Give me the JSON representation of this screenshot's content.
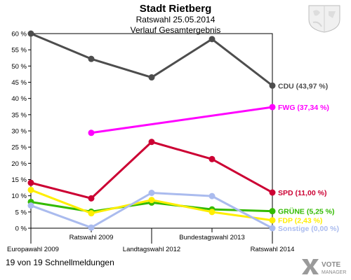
{
  "header": {
    "title": "Stadt Rietberg",
    "subtitle": "Ratswahl 25.05.2014",
    "subtitle2": "Verlauf Gesamtergebnis"
  },
  "footer": {
    "status": "19 von 19 Schnellmeldungen",
    "logo_text_1": "VOTE",
    "logo_text_2": "MANAGER"
  },
  "icons": {
    "crest": "coat-of-arms-icon",
    "logo": "vote-manager-logo-icon"
  },
  "chart_data": {
    "type": "line",
    "title": "Stadt Rietberg",
    "subtitle": "Ratswahl 25.05.2014 – Verlauf Gesamtergebnis",
    "categories": [
      "Europawahl 2009",
      "Ratswahl 2009",
      "Landtagswahl 2012",
      "Bundestagswahl 2013",
      "Ratswahl 2014"
    ],
    "ylim": [
      0,
      60
    ],
    "yticks": [
      0,
      5,
      10,
      15,
      20,
      25,
      30,
      35,
      40,
      45,
      50,
      55,
      60
    ],
    "ytick_labels": [
      "0 %",
      "5 %",
      "10 %",
      "15 %",
      "20 %",
      "25 %",
      "30 %",
      "35 %",
      "40 %",
      "45 %",
      "50 %",
      "55 %",
      "60 %"
    ],
    "grid": false,
    "series": [
      {
        "name": "CDU",
        "color": "#4d4d4d",
        "values": [
          60.0,
          52.2,
          46.5,
          58.3,
          43.97
        ],
        "end_label": "CDU (43,97 %)"
      },
      {
        "name": "FWG",
        "color": "#ff00ff",
        "values": [
          null,
          29.4,
          null,
          null,
          37.34
        ],
        "end_label": "FWG (37,34 %)"
      },
      {
        "name": "SPD",
        "color": "#cc0033",
        "values": [
          14.0,
          9.2,
          26.6,
          21.3,
          11.0
        ],
        "end_label": "SPD (11,00 %)"
      },
      {
        "name": "GRÜNE",
        "color": "#33bb00",
        "values": [
          8.1,
          5.1,
          7.9,
          5.8,
          5.25
        ],
        "end_label": "GRÜNE (5,25 %)"
      },
      {
        "name": "FDP",
        "color": "#ffee00",
        "values": [
          11.8,
          4.6,
          8.7,
          5.0,
          2.43
        ],
        "end_label": "FDP (2,43 %)"
      },
      {
        "name": "Sonstige",
        "color": "#aabbee",
        "values": [
          7.0,
          0.2,
          10.9,
          9.9,
          0.0
        ],
        "end_label": "Sonstige (0,00 %)"
      }
    ]
  }
}
